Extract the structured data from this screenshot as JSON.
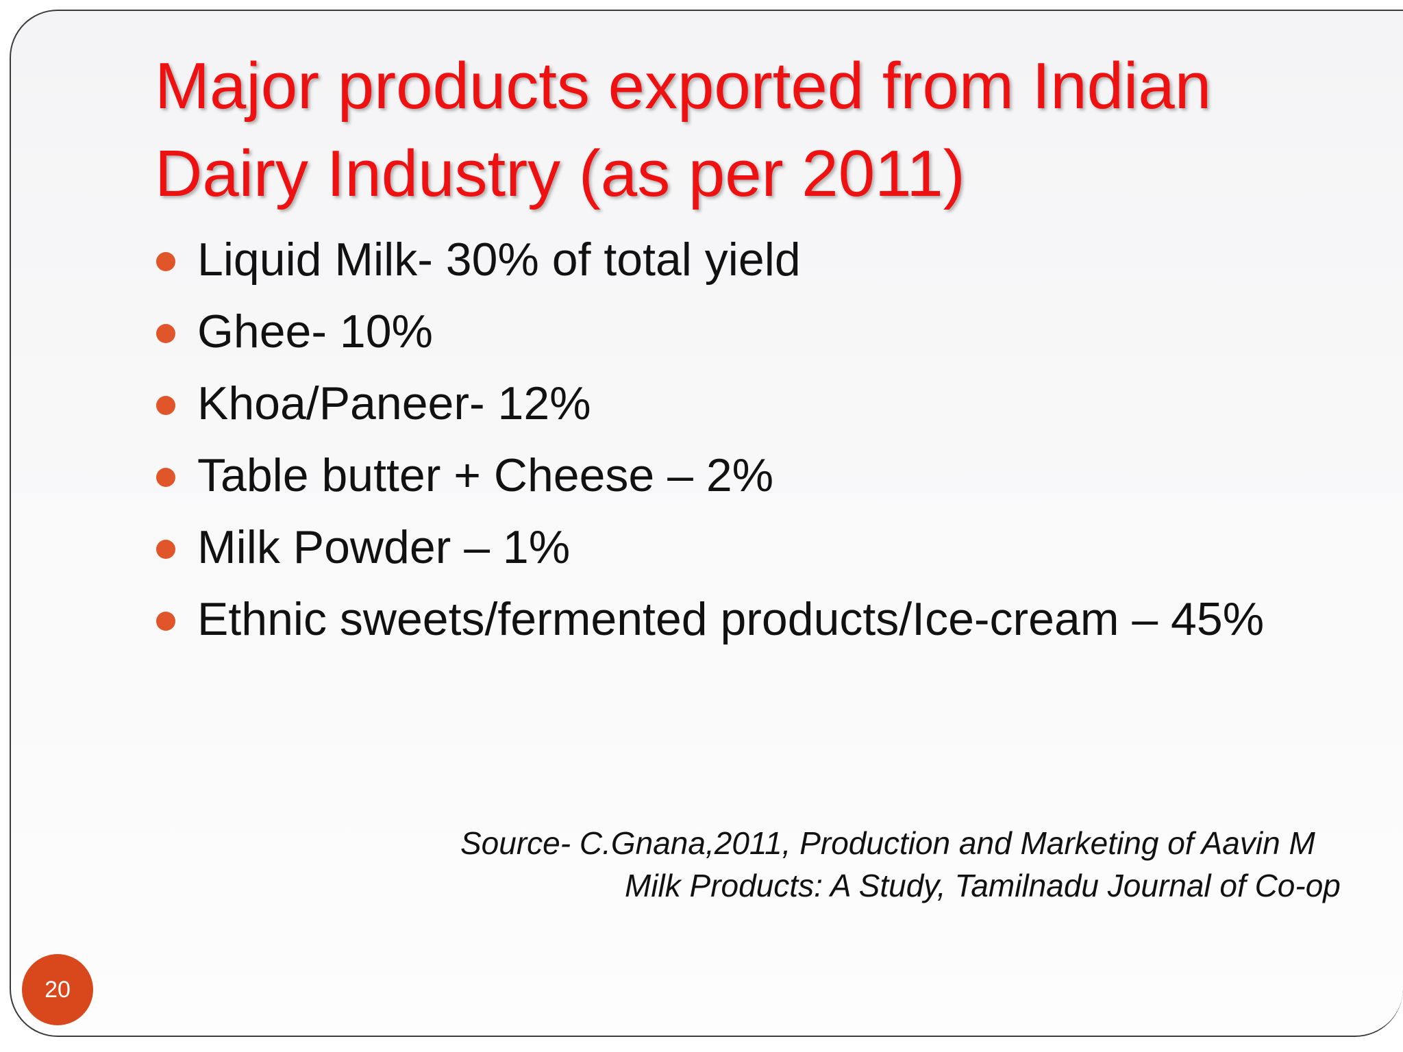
{
  "slide": {
    "title": "Major products exported from Indian Dairy Industry (as per 2011)",
    "bullets": [
      "Liquid Milk- 30% of total yield",
      "Ghee- 10%",
      "Khoa/Paneer- 12%",
      "Table butter + Cheese – 2%",
      "Milk Powder – 1%",
      "Ethnic sweets/fermented products/Ice-cream – 45%"
    ],
    "source_line1": "Source- C.Gnana,2011, Production and Marketing of Aavin M",
    "source_line2": "Milk Products: A Study, Tamilnadu Journal of Co-op",
    "slide_number": "20"
  },
  "colors": {
    "title": "#ee1111",
    "bullet": "#e0562a",
    "badge": "#d9481c"
  }
}
